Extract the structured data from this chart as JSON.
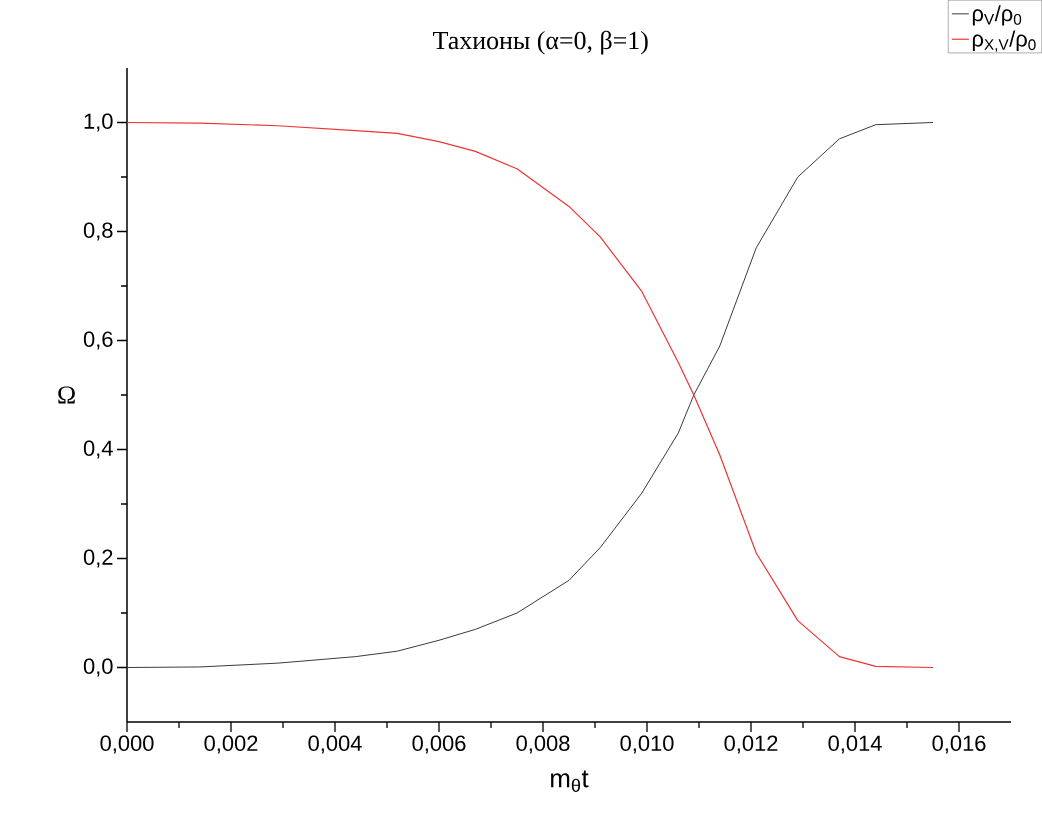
{
  "chart_data": {
    "type": "line",
    "title": "Тахионы (α=0, β=1)",
    "xlabel": "m$_{θ}$t",
    "ylabel": "Ω",
    "x": [
      0,
      0.0014,
      0.0029,
      0.0044,
      0.0052,
      0.006,
      0.0067,
      0.0075,
      0.0085,
      0.0091,
      0.0099,
      0.0106,
      0.0109,
      0.0114,
      0.0121,
      0.0129,
      0.0137,
      0.0144,
      0.0155
    ],
    "series": [
      {
        "name": "ρ$_{V}$/ρ$_{0}$",
        "color": "#3c3c3c",
        "values": [
          0,
          0.001,
          0.008,
          0.02,
          0.03,
          0.05,
          0.07,
          0.1,
          0.16,
          0.22,
          0.32,
          0.43,
          0.5,
          0.59,
          0.77,
          0.9,
          0.97,
          0.996,
          1.0
        ]
      },
      {
        "name": "ρ$_{X,V}$/ρ$_{0}$",
        "color": "#ee3333",
        "values": [
          1,
          0.999,
          0.994,
          0.985,
          0.98,
          0.965,
          0.947,
          0.915,
          0.846,
          0.79,
          0.69,
          0.56,
          0.5,
          0.39,
          0.21,
          0.086,
          0.02,
          0.002,
          0
        ]
      }
    ],
    "xlim": [
      0,
      0.017
    ],
    "ylim": [
      -0.1,
      1.1
    ],
    "xticks": [
      {
        "value": 0,
        "label": "0,000"
      },
      {
        "value": 0.002,
        "label": "0,002"
      },
      {
        "value": 0.004,
        "label": "0,004"
      },
      {
        "value": 0.006,
        "label": "0,006"
      },
      {
        "value": 0.008,
        "label": "0,008"
      },
      {
        "value": 0.01,
        "label": "0,010"
      },
      {
        "value": 0.012,
        "label": "0,012"
      },
      {
        "value": 0.014,
        "label": "0,014"
      },
      {
        "value": 0.016,
        "label": "0,016"
      }
    ],
    "yticks": [
      {
        "value": 0,
        "label": "0,0"
      },
      {
        "value": 0.2,
        "label": "0,2"
      },
      {
        "value": 0.4,
        "label": "0,4"
      },
      {
        "value": 0.6,
        "label": "0,6"
      },
      {
        "value": 0.8,
        "label": "0,8"
      },
      {
        "value": 1,
        "label": "1,0"
      }
    ],
    "legend": "top right"
  }
}
